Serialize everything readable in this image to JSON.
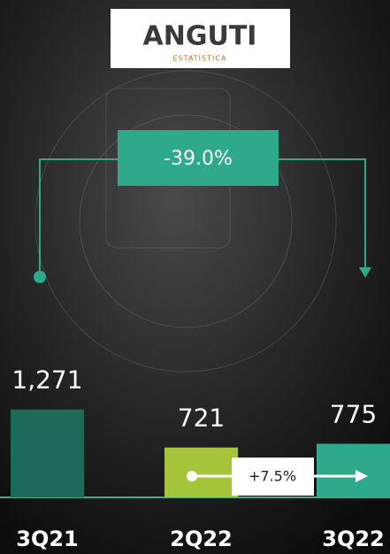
{
  "logo": {
    "name": "ANGUTI",
    "subtitle": "ESTATÍSTICA"
  },
  "chart_data": {
    "type": "bar",
    "categories": [
      "3Q21",
      "2Q22",
      "3Q22"
    ],
    "values": [
      1271,
      721,
      775
    ],
    "value_labels": [
      "1,271",
      "721",
      "775"
    ],
    "colors": [
      "#1d6a58",
      "#a4c43a",
      "#2ea98a"
    ],
    "ylim": [
      0,
      1600
    ],
    "annotations": [
      "-39.0%",
      "+7.5%"
    ]
  }
}
